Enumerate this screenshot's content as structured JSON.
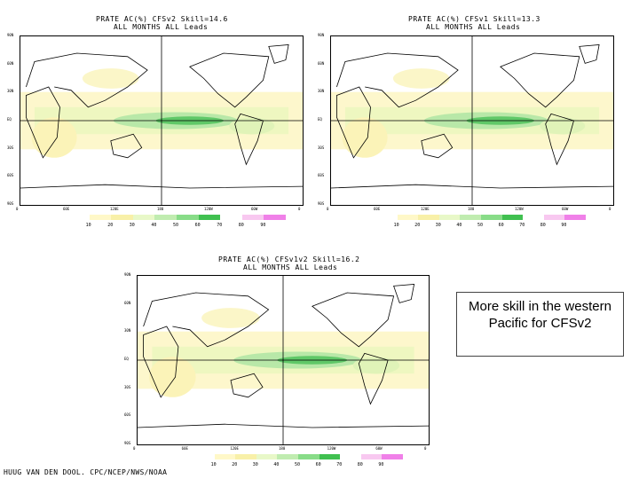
{
  "panels": [
    {
      "title_line1": "PRATE AC(%) CFSv2 Skill=14.6",
      "title_line2": "ALL MONTHS ALL Leads"
    },
    {
      "title_line1": "PRATE AC(%) CFSv1 Skill=13.3",
      "title_line2": "ALL MONTHS ALL Leads"
    },
    {
      "title_line1": "PRATE AC(%) CFSv1v2 Skill=16.2",
      "title_line2": "ALL MONTHS ALL Leads"
    }
  ],
  "lat_labels": [
    "90N",
    "60N",
    "30N",
    "EQ",
    "30S",
    "60S",
    "90S"
  ],
  "lon_labels": [
    "0",
    "60E",
    "120E",
    "180",
    "120W",
    "60W",
    "0"
  ],
  "colorbar": {
    "labels": [
      "10",
      "20",
      "30",
      "40",
      "50",
      "60",
      "70",
      "80",
      "90"
    ],
    "colors": [
      "#ffffff",
      "#fff8c8",
      "#f8f0a8",
      "#e8f8c8",
      "#c0ecb0",
      "#88dc88",
      "#40c050",
      "#ffffff",
      "#f8c8f0",
      "#f080e8"
    ]
  },
  "annotation": "More skill in the western Pacific for CFSv2",
  "credit": "HUUG VAN DEN DOOL. CPC/NCEP/NWS/NOAA"
}
